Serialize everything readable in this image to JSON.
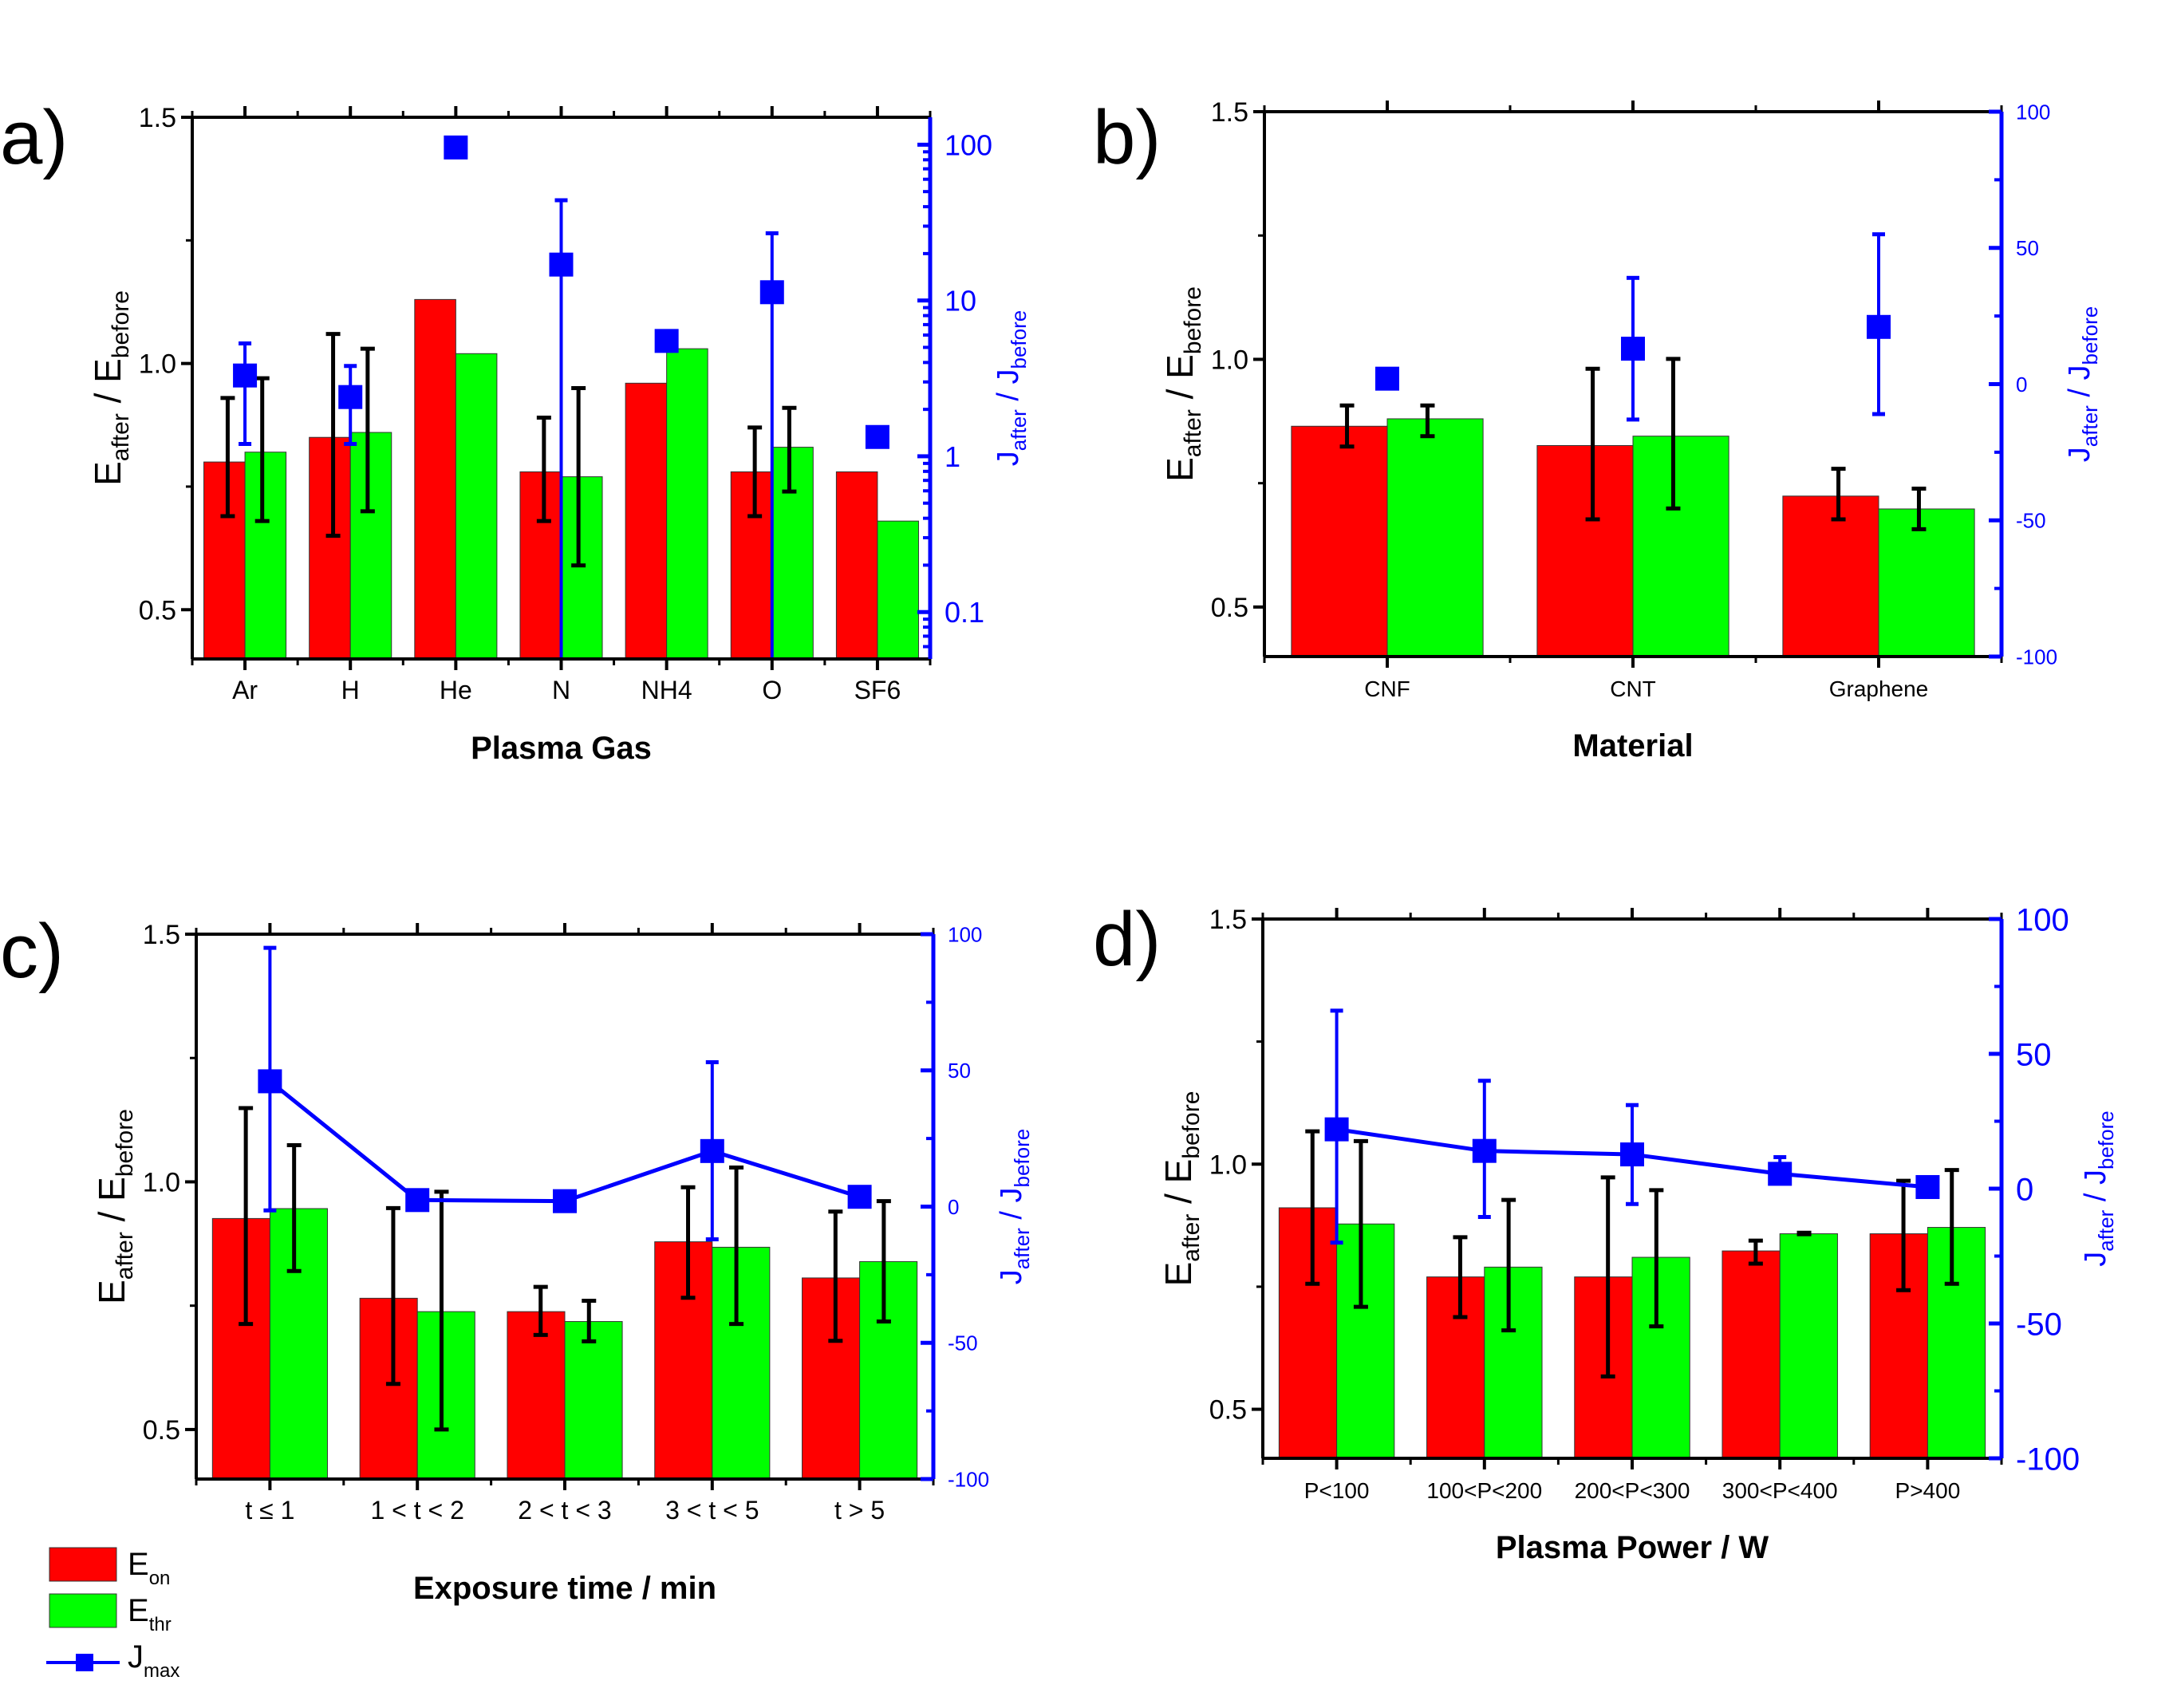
{
  "figure": {
    "legend": {
      "items": [
        {
          "label": "E",
          "sub": "on",
          "kind": "bar",
          "color": "#ff0000"
        },
        {
          "label": "E",
          "sub": "thr",
          "kind": "bar",
          "color": "#00ff00"
        },
        {
          "label": "J",
          "sub": "max",
          "kind": "line-marker",
          "color": "#0000ff"
        }
      ]
    },
    "colors": {
      "red": "#ff0000",
      "green": "#00ff00",
      "blue": "#0000ff",
      "axis": "#000000"
    }
  },
  "chart_data": [
    {
      "panel": "a)",
      "type": "bar",
      "xlabel": "Plasma Gas",
      "ylabel": {
        "main": "E",
        "sub1": "after",
        "sep": " / ",
        "main2": "E",
        "sub2": "before"
      },
      "ylabel_right": {
        "main": "J",
        "sub1": "after",
        "sep": " / ",
        "main2": "J",
        "sub2": "before"
      },
      "ylim": [
        0.4,
        1.5
      ],
      "yticks": [
        0.5,
        1.0,
        1.5
      ],
      "ytick_labels": [
        "0.5",
        "1.0",
        "1.5"
      ],
      "y2_scale": "log",
      "y2lim": [
        0.05,
        150
      ],
      "y2ticks": [
        0.1,
        1,
        10,
        100
      ],
      "y2tick_labels": [
        "0.1",
        "1",
        "10",
        "100"
      ],
      "categories": [
        "Ar",
        "H",
        "He",
        "N",
        "NH4",
        "O",
        "SF6"
      ],
      "series": [
        {
          "name": "E_on",
          "color": "#ff0000",
          "values": [
            0.8,
            0.85,
            1.13,
            0.78,
            0.96,
            0.78,
            0.78
          ],
          "err_low": [
            0.69,
            0.65,
            null,
            0.68,
            null,
            0.69,
            null
          ],
          "err_high": [
            0.93,
            1.06,
            null,
            0.89,
            null,
            0.87,
            null
          ]
        },
        {
          "name": "E_thr",
          "color": "#00ff00",
          "values": [
            0.82,
            0.86,
            1.02,
            0.77,
            1.03,
            0.83,
            0.68
          ],
          "err_low": [
            0.68,
            0.7,
            null,
            0.59,
            null,
            0.74,
            null
          ],
          "err_high": [
            0.97,
            1.03,
            null,
            0.95,
            null,
            0.91,
            null
          ]
        },
        {
          "name": "J_max",
          "color": "#0000ff",
          "axis": "right",
          "line": false,
          "values": [
            3.3,
            2.4,
            96,
            17,
            5.5,
            11.3,
            1.33
          ],
          "err_low": [
            1.2,
            1.2,
            null,
            0.01,
            null,
            0.01,
            null
          ],
          "err_high": [
            5.3,
            3.8,
            null,
            44,
            null,
            27,
            null
          ]
        }
      ]
    },
    {
      "panel": "b)",
      "type": "bar",
      "xlabel": "Material",
      "ylabel": {
        "main": "E",
        "sub1": "after",
        "sep": " / ",
        "main2": "E",
        "sub2": "before"
      },
      "ylabel_right": {
        "main": "J",
        "sub1": "after",
        "sep": " / ",
        "main2": "J",
        "sub2": "before"
      },
      "ylim": [
        0.4,
        1.5
      ],
      "yticks": [
        0.5,
        1.0,
        1.5
      ],
      "ytick_labels": [
        "0.5",
        "1.0",
        "1.5"
      ],
      "y2_scale": "linear",
      "y2lim": [
        -100,
        100
      ],
      "y2ticks": [
        -100,
        -50,
        0,
        50,
        100
      ],
      "y2tick_labels": [
        "-100",
        "-50",
        "0",
        "50",
        "100"
      ],
      "categories": [
        "CNF",
        "CNT",
        "Graphene"
      ],
      "series": [
        {
          "name": "E_on",
          "color": "#ff0000",
          "values": [
            0.865,
            0.826,
            0.724
          ],
          "err_low": [
            0.824,
            0.677,
            0.677
          ],
          "err_high": [
            0.907,
            0.981,
            0.779
          ]
        },
        {
          "name": "E_thr",
          "color": "#00ff00",
          "values": [
            0.88,
            0.845,
            0.698
          ],
          "err_low": [
            0.845,
            0.699,
            0.657
          ],
          "err_high": [
            0.907,
            1.001,
            0.739
          ]
        },
        {
          "name": "J_max",
          "color": "#0000ff",
          "axis": "right",
          "line": false,
          "values": [
            2,
            13,
            21
          ],
          "err_low": [
            -0.5,
            -13,
            -11
          ],
          "err_high": [
            4,
            39,
            55
          ]
        }
      ]
    },
    {
      "panel": "c)",
      "type": "bar",
      "xlabel": "Exposure time / min",
      "ylabel": {
        "main": "E",
        "sub1": "after",
        "sep": " / ",
        "main2": "E",
        "sub2": "before"
      },
      "ylabel_right": {
        "main": "J",
        "sub1": "after",
        "sep": " / ",
        "main2": "J",
        "sub2": "before"
      },
      "ylim": [
        0.4,
        1.5
      ],
      "yticks": [
        0.5,
        1.0,
        1.5
      ],
      "ytick_labels": [
        "0.5",
        "1.0",
        "1.5"
      ],
      "y2_scale": "linear",
      "y2lim": [
        -100,
        100
      ],
      "y2ticks": [
        -100,
        -50,
        0,
        50,
        100
      ],
      "y2tick_labels": [
        "-100",
        "-50",
        "0",
        "50",
        "100"
      ],
      "categories": [
        "t ≤ 1",
        "1 < t < 2",
        "2 < t < 3",
        "3 < t < 5",
        "t > 5"
      ],
      "series": [
        {
          "name": "E_on",
          "color": "#ff0000",
          "values": [
            0.926,
            0.765,
            0.738,
            0.879,
            0.806
          ],
          "err_low": [
            0.713,
            0.592,
            0.691,
            0.766,
            0.679
          ],
          "err_high": [
            1.149,
            0.947,
            0.788,
            0.989,
            0.94
          ]
        },
        {
          "name": "E_thr",
          "color": "#00ff00",
          "values": [
            0.946,
            0.738,
            0.718,
            0.868,
            0.839
          ],
          "err_low": [
            0.82,
            0.5,
            0.678,
            0.713,
            0.718
          ],
          "err_high": [
            1.074,
            0.98,
            0.76,
            1.029,
            0.961
          ]
        },
        {
          "name": "J_max",
          "color": "#0000ff",
          "axis": "right",
          "line": true,
          "values": [
            46,
            2.4,
            2,
            20.4,
            3.6
          ],
          "err_low": [
            -1.4,
            null,
            null,
            -12,
            null
          ],
          "err_high": [
            95,
            null,
            null,
            53,
            null
          ]
        }
      ]
    },
    {
      "panel": "d)",
      "type": "bar",
      "xlabel": "Plasma Power / W",
      "ylabel": {
        "main": "E",
        "sub1": "after",
        "sep": " / ",
        "main2": "E",
        "sub2": "before"
      },
      "ylabel_right": {
        "main": "J",
        "sub1": "after",
        "sep": " / ",
        "main2": "J",
        "sub2": "before"
      },
      "ylim": [
        0.4,
        1.5
      ],
      "yticks": [
        0.5,
        1.0,
        1.5
      ],
      "ytick_labels": [
        "0.5",
        "1.0",
        "1.5"
      ],
      "y2_scale": "linear",
      "y2lim": [
        -100,
        100
      ],
      "y2ticks": [
        -100,
        -50,
        0,
        50,
        100
      ],
      "y2tick_labels": [
        "-100",
        "-50",
        "0",
        "50",
        "100"
      ],
      "categories": [
        "P<100",
        "100<P<200",
        "200<P<300",
        "300<P<400",
        "P>400"
      ],
      "series": [
        {
          "name": "E_on",
          "color": "#ff0000",
          "values": [
            0.911,
            0.77,
            0.77,
            0.823,
            0.858
          ],
          "err_low": [
            0.756,
            0.688,
            0.567,
            0.797,
            0.743
          ],
          "err_high": [
            1.067,
            0.851,
            0.973,
            0.844,
            0.966
          ]
        },
        {
          "name": "E_thr",
          "color": "#00ff00",
          "values": [
            0.878,
            0.79,
            0.81,
            0.858,
            0.871
          ],
          "err_low": [
            0.709,
            0.661,
            0.669,
            0.857,
            0.756
          ],
          "err_high": [
            1.047,
            0.927,
            0.947,
            0.86,
            0.988
          ]
        },
        {
          "name": "J_max",
          "color": "#0000ff",
          "axis": "right",
          "line": true,
          "values": [
            22,
            14,
            12.7,
            5.5,
            0.6
          ],
          "err_low": [
            -20,
            -10.5,
            -5.7,
            2,
            null
          ],
          "err_high": [
            66,
            40,
            31,
            11.7,
            null
          ]
        }
      ]
    }
  ]
}
